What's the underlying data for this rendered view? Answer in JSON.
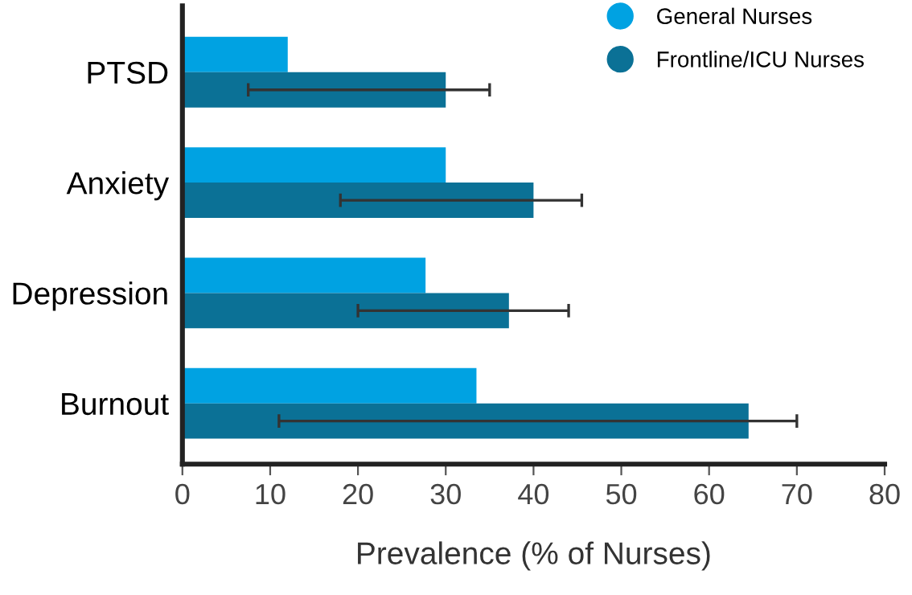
{
  "chart_data": {
    "type": "bar",
    "orientation": "horizontal",
    "xlabel": "Prevalence (% of Nurses)",
    "categories": [
      "PTSD",
      "Anxiety",
      "Depression",
      "Burnout"
    ],
    "series": [
      {
        "name": "General Nurses",
        "color": "#00a2e2",
        "values": [
          12,
          30,
          27.7,
          33.5
        ]
      },
      {
        "name": "Frontline/ICU Nurses",
        "color": "#0b7196",
        "values": [
          30,
          40,
          37.2,
          64.5
        ],
        "errors": [
          [
            7.5,
            35
          ],
          [
            18,
            45.5
          ],
          [
            20,
            44
          ],
          [
            11,
            70
          ]
        ]
      }
    ],
    "xlim": [
      0,
      80
    ],
    "xticks": [
      0,
      10,
      20,
      30,
      40,
      50,
      60,
      70,
      80
    ],
    "grid": false,
    "legend": "top right"
  }
}
